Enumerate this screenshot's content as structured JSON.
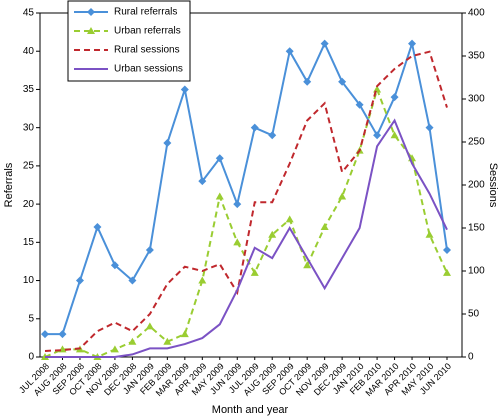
{
  "chart_data": {
    "type": "line",
    "x_label": "Month and year",
    "y_label": "Referrals",
    "y2_label": "Sessions",
    "categories": [
      "JUL 2008",
      "AUG 2008",
      "SEP 2008",
      "OCT 2008",
      "NOV 2008",
      "DEC 2008",
      "JAN 2009",
      "FEB 2009",
      "MAR 2009",
      "APR 2009",
      "MAY 2009",
      "JUN 2009",
      "JUL 2009",
      "AUG 2009",
      "SEP 2009",
      "OCT 2009",
      "NOV 2009",
      "DEC 2009",
      "JAN 2010",
      "FEB 2010",
      "MAR 2010",
      "APR 2010",
      "MAY 2010",
      "JUN 2010"
    ],
    "series": [
      {
        "name": "Rural referrals",
        "color": "#4a90d9",
        "linestyle": "solid",
        "marker": "diamond",
        "axis": "y",
        "values": [
          3,
          3,
          10,
          17,
          12,
          10,
          14,
          28,
          35,
          23,
          26,
          20,
          30,
          29,
          40,
          36,
          41,
          36,
          33,
          29,
          34,
          41,
          30,
          14
        ]
      },
      {
        "name": "Urban referrals",
        "color": "#9acd32",
        "linestyle": "dashed",
        "marker": "triangle",
        "axis": "y",
        "values": [
          0,
          1,
          1,
          0,
          1,
          2,
          4,
          2,
          3,
          10,
          21,
          15,
          11,
          16,
          18,
          12,
          17,
          21,
          27,
          35,
          29,
          26,
          16,
          11
        ]
      },
      {
        "name": "Rural sessions",
        "color": "#c0282d",
        "linestyle": "dashed",
        "marker": "none",
        "axis": "y2",
        "values": [
          7,
          8,
          10,
          30,
          40,
          30,
          50,
          85,
          105,
          100,
          108,
          75,
          180,
          180,
          225,
          275,
          295,
          215,
          240,
          315,
          335,
          350,
          355,
          290
        ]
      },
      {
        "name": "Urban sessions",
        "color": "#7b52c4",
        "linestyle": "solid",
        "marker": "none",
        "axis": "y2",
        "values": [
          0,
          0,
          0,
          0,
          0,
          3,
          10,
          10,
          15,
          22,
          38,
          78,
          127,
          115,
          150,
          115,
          80,
          115,
          150,
          245,
          275,
          225,
          190,
          148
        ]
      }
    ],
    "ylim": [
      0,
      45
    ],
    "yticks": [
      0,
      5,
      10,
      15,
      20,
      25,
      30,
      35,
      40,
      45
    ],
    "y2lim": [
      0,
      400
    ],
    "y2ticks": [
      0,
      50,
      100,
      150,
      200,
      250,
      300,
      350,
      400
    ],
    "grid": false,
    "legend": "upper left"
  }
}
